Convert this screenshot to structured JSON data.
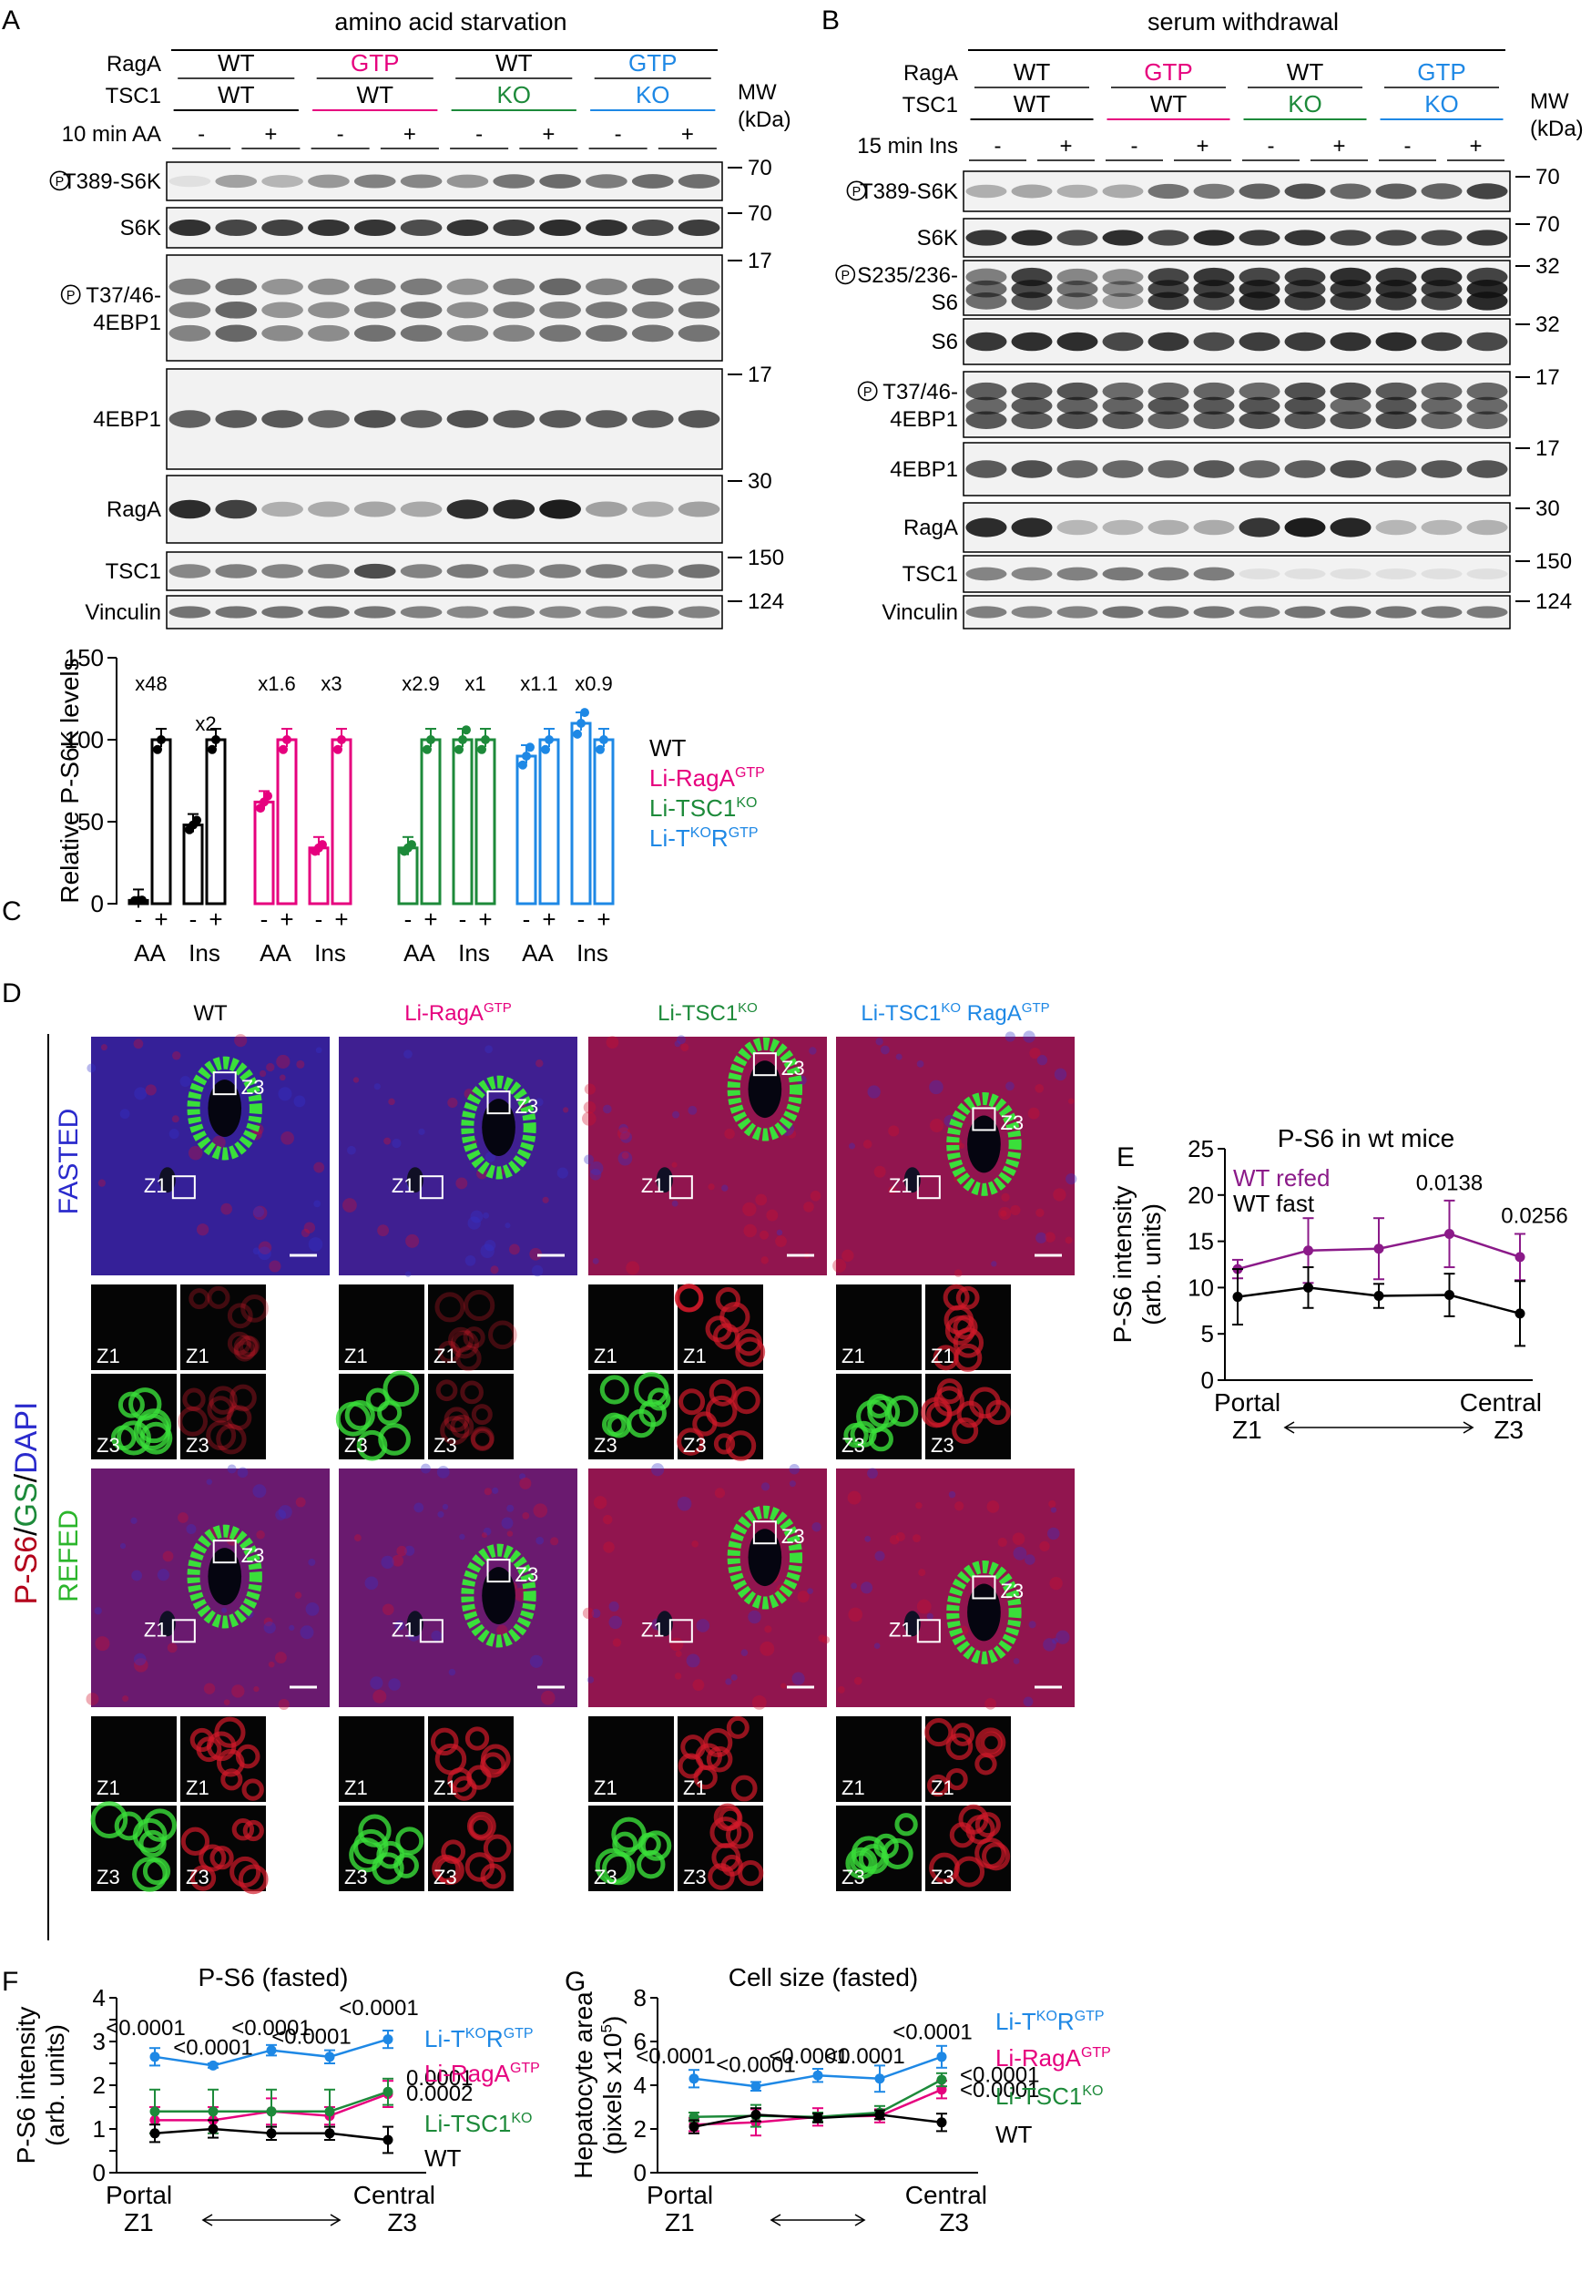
{
  "panel_letters": {
    "a": "A",
    "b": "B",
    "c": "C",
    "d": "D",
    "e": "E",
    "f": "F",
    "g": "G"
  },
  "colors": {
    "wt": "#000000",
    "raga": "#e6007e",
    "tsc1": "#1d8a3a",
    "both": "#1e88e5",
    "refed": "#8b1a89",
    "red_stain": "#b3001b",
    "green_stain": "#3adf3a",
    "blue_stain": "#2a2acc"
  },
  "panelA": {
    "title": "amino acid starvation",
    "rowlabels": [
      "RagA",
      "TSC1",
      "10 min AA"
    ],
    "raga": [
      "WT",
      "GTP",
      "WT",
      "GTP"
    ],
    "tsc1": [
      "WT",
      "WT",
      "KO",
      "KO"
    ],
    "signs": [
      "-",
      "+",
      "-",
      "+",
      "-",
      "+",
      "-",
      "+"
    ],
    "mw_header": [
      "MW",
      "(kDa)"
    ],
    "blots": [
      {
        "label": "P-T389-S6K",
        "mw": "70"
      },
      {
        "label": "S6K",
        "mw": "70"
      },
      {
        "label": "P-T37/46-",
        "label2": "4EBP1",
        "mw": "17"
      },
      {
        "label": "4EBP1",
        "mw": "17"
      },
      {
        "label": "RagA",
        "mw": "30"
      },
      {
        "label": "TSC1",
        "mw": "150"
      },
      {
        "label": "Vinculin",
        "mw": "124"
      }
    ]
  },
  "panelB": {
    "title": "serum withdrawal",
    "rowlabels": [
      "RagA",
      "TSC1",
      "15 min Ins"
    ],
    "raga": [
      "WT",
      "GTP",
      "WT",
      "GTP"
    ],
    "tsc1": [
      "WT",
      "WT",
      "KO",
      "KO"
    ],
    "signs": [
      "-",
      "+",
      "-",
      "+",
      "-",
      "+",
      "-",
      "+"
    ],
    "mw_header": [
      "MW",
      "(kDa)"
    ],
    "blots": [
      {
        "label": "P-T389-S6K",
        "mw": "70"
      },
      {
        "label": "S6K",
        "mw": "70"
      },
      {
        "label": "P-S235/236-",
        "label2": "S6",
        "mw": "32"
      },
      {
        "label": "S6",
        "mw": "32"
      },
      {
        "label": "P-T37/46-",
        "label2": "4EBP1",
        "mw": "17"
      },
      {
        "label": "4EBP1",
        "mw": "17"
      },
      {
        "label": "RagA",
        "mw": "30"
      },
      {
        "label": "TSC1",
        "mw": "150"
      },
      {
        "label": "Vinculin",
        "mw": "124"
      }
    ]
  },
  "chart_data": [
    {
      "id": "C",
      "type": "bar",
      "ylabel": "Relative P-S6K levels",
      "ylim": [
        0,
        150
      ],
      "yticks": [
        0,
        50,
        100,
        150
      ],
      "groups": [
        {
          "name": "WT",
          "bars": [
            {
              "x": "-",
              "v": 2
            },
            {
              "x": "+",
              "v": 100
            },
            {
              "x": "-",
              "v": 48
            },
            {
              "x": "+",
              "v": 100
            }
          ],
          "folds": [
            "x48",
            "x2"
          ]
        },
        {
          "name": "Li-RagA GTP",
          "bars": [
            {
              "x": "-",
              "v": 62
            },
            {
              "x": "+",
              "v": 100
            },
            {
              "x": "-",
              "v": 34
            },
            {
              "x": "+",
              "v": 100
            }
          ],
          "folds": [
            "x1.6",
            "x3"
          ]
        },
        {
          "name": "Li-TSC1 KO",
          "bars": [
            {
              "x": "-",
              "v": 34
            },
            {
              "x": "+",
              "v": 100
            },
            {
              "x": "-",
              "v": 100
            },
            {
              "x": "+",
              "v": 100
            }
          ],
          "folds": [
            "x2.9",
            "x1"
          ]
        },
        {
          "name": "Li-TKO RGTP",
          "bars": [
            {
              "x": "-",
              "v": 90
            },
            {
              "x": "+",
              "v": 100
            },
            {
              "x": "-",
              "v": 110
            },
            {
              "x": "+",
              "v": 100
            }
          ],
          "folds": [
            "x1.1",
            "x0.9"
          ]
        }
      ],
      "xgroups": [
        "AA",
        "Ins"
      ],
      "legend": [
        {
          "text": "WT",
          "sup": ""
        },
        {
          "text": "Li-RagA",
          "sup": "GTP"
        },
        {
          "text": "Li-TSC1",
          "sup": "KO"
        },
        {
          "text": "Li-T",
          "sup": "KO",
          "text2": "R",
          "sup2": "GTP"
        }
      ]
    },
    {
      "id": "E",
      "type": "line",
      "title": "P-S6 in wt mice",
      "ylabel": "P-S6 intensity",
      "ylabel2": "(arb. units)",
      "ylim": [
        0,
        25
      ],
      "yticks": [
        0,
        5,
        10,
        15,
        20,
        25
      ],
      "x": [
        1,
        2,
        3,
        4,
        5
      ],
      "series": [
        {
          "name": "WT refed",
          "values": [
            12,
            14,
            14.2,
            15.8,
            13.3
          ],
          "err": [
            1,
            3.5,
            3.3,
            3.6,
            2.5
          ]
        },
        {
          "name": "WT fast",
          "values": [
            9,
            10,
            9.1,
            9.2,
            7.2
          ],
          "err": [
            3,
            2.2,
            1.3,
            2.3,
            3.5
          ]
        }
      ],
      "pvalues": [
        "0.0138",
        "0.0256"
      ],
      "xlabels": {
        "left": "Portal",
        "left2": "Z1",
        "right": "Central",
        "right2": "Z3"
      }
    },
    {
      "id": "F",
      "type": "line",
      "title": "P-S6 (fasted)",
      "ylabel": "P-S6 intensity",
      "ylabel2": "(arb. units)",
      "ylim": [
        0,
        4
      ],
      "yticks": [
        0,
        0.5,
        1,
        1.5,
        2,
        2.5,
        3,
        3.5,
        4
      ],
      "yticklabels": [
        "0",
        "",
        "1",
        "",
        "2",
        "",
        "3",
        "",
        "4"
      ],
      "x": [
        1,
        2,
        3,
        4,
        5
      ],
      "series": [
        {
          "name": "Li-TKO RGTP",
          "values": [
            2.65,
            2.45,
            2.8,
            2.65,
            3.05
          ],
          "err": [
            0.2,
            0.05,
            0.12,
            0.15,
            0.2
          ]
        },
        {
          "name": "Li-RagA GTP",
          "values": [
            1.2,
            1.2,
            1.4,
            1.3,
            1.8
          ],
          "err": [
            0.3,
            0.3,
            0.3,
            0.2,
            0.3
          ]
        },
        {
          "name": "Li-TSC1 KO",
          "values": [
            1.4,
            1.4,
            1.4,
            1.4,
            1.85
          ],
          "err": [
            0.5,
            0.5,
            0.5,
            0.5,
            0.3
          ]
        },
        {
          "name": "WT",
          "values": [
            0.9,
            1.0,
            0.9,
            0.9,
            0.75
          ],
          "err": [
            0.2,
            0.2,
            0.15,
            0.15,
            0.3
          ]
        }
      ],
      "pvalues": [
        "<0.0001",
        "<0.0001",
        "<0.0001",
        "<0.0001",
        "<0.0001",
        "0.0001",
        "0.0002"
      ],
      "xlabels": {
        "left": "Portal",
        "left2": "Z1",
        "right": "Central",
        "right2": "Z3"
      }
    },
    {
      "id": "G",
      "type": "line",
      "title": "Cell size (fasted)",
      "ylabel": "Hepatocyte area",
      "ylabel2": "(pixels x10",
      "ylabel2sup": "5",
      "ylabel2end": ")",
      "ylim": [
        0,
        8
      ],
      "yticks": [
        0,
        2,
        4,
        6,
        8
      ],
      "x": [
        1,
        2,
        3,
        4,
        5
      ],
      "series": [
        {
          "name": "Li-TKO RGTP",
          "values": [
            4.3,
            3.95,
            4.45,
            4.3,
            5.3
          ],
          "err": [
            0.4,
            0.2,
            0.3,
            0.6,
            0.5
          ]
        },
        {
          "name": "Li-RagA GTP",
          "values": [
            2.2,
            2.3,
            2.55,
            2.6,
            3.8
          ],
          "err": [
            0.3,
            0.6,
            0.4,
            0.3,
            0.4
          ]
        },
        {
          "name": "Li-TSC1 KO",
          "values": [
            2.55,
            2.6,
            2.55,
            2.75,
            4.25
          ],
          "err": [
            0.2,
            0.5,
            0.2,
            0.3,
            0.3
          ]
        },
        {
          "name": "WT",
          "values": [
            2.1,
            2.65,
            2.5,
            2.65,
            2.3
          ],
          "err": [
            0.3,
            0.3,
            0.2,
            0.2,
            0.4
          ]
        }
      ],
      "pvalues": [
        "<0.0001",
        "<0.0001",
        "<0.0001",
        "<0.0001",
        "<0.0001",
        "<0.0001",
        "<0.0001"
      ],
      "xlabels": {
        "left": "Portal",
        "left2": "Z1",
        "right": "Central",
        "right2": "Z3"
      }
    }
  ],
  "legendFG": [
    {
      "text": "Li-T",
      "sup": "KO",
      "text2": "R",
      "sup2": "GTP"
    },
    {
      "text": "Li-RagA",
      "sup": "GTP"
    },
    {
      "text": "Li-TSC1",
      "sup": "KO"
    },
    {
      "text": "WT"
    }
  ],
  "panelD": {
    "cols": [
      {
        "text": "WT",
        "sup": ""
      },
      {
        "text": "Li-RagA",
        "sup": "GTP"
      },
      {
        "text": "Li-TSC1",
        "sup": "KO"
      },
      {
        "text": "Li-TSC1",
        "sup": "KO",
        "text2": " RagA",
        "sup2": "GTP"
      }
    ],
    "rows": [
      "FASTED",
      "REFED"
    ],
    "stain": [
      "P-S6",
      "/",
      "GS",
      "/",
      "DAPI"
    ],
    "zones": [
      "Z1",
      "Z3"
    ]
  }
}
